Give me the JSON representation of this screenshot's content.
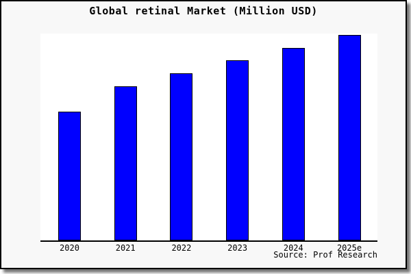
{
  "chart_data": {
    "type": "bar",
    "title": "Global retinal Market (Million USD)",
    "categories": [
      "2020",
      "2021",
      "2022",
      "2023",
      "2024",
      "2025e"
    ],
    "values": [
      62.7,
      75.0,
      81.3,
      87.7,
      93.7,
      100
    ],
    "value_note": "No y-axis ticks or labels shown; values estimated from bar heights relative to tallest bar (2025e = 100)",
    "xlabel": "",
    "ylabel": "",
    "ylim": [
      0,
      100
    ],
    "grid": false,
    "legend_position": "none",
    "y_axis_visible": false,
    "bar_color": "#0000ff",
    "bar_border_color": "#000000",
    "axis_color": "#000000"
  },
  "footer": {
    "source": "Source: Prof Research"
  },
  "colors": {
    "page_bg": "#ffffff",
    "chart_bg": "#f8f8f8",
    "plot_bg": "#ffffff",
    "title_text": "#000000"
  }
}
